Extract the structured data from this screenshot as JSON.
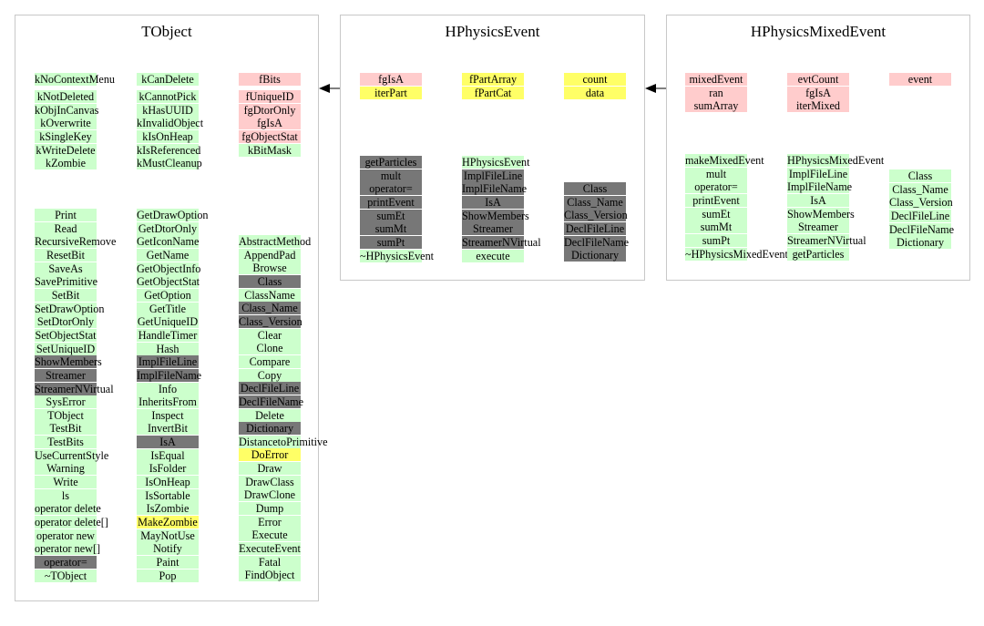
{
  "colors": {
    "green": "#ccffcc",
    "pink": "#ffcccc",
    "yellow": "#ffff66",
    "gray": "#777777",
    "border": "#c8c8c8"
  },
  "classes": [
    {
      "id": "tobject",
      "title": "TObject",
      "columns": [
        {
          "groups": [
            [
              {
                "text": "kNoContextMenu",
                "color": "green"
              }
            ],
            [
              {
                "text": "kNotDeleted",
                "color": "green"
              },
              {
                "text": "kObjInCanvas",
                "color": "green"
              },
              {
                "text": "kOverwrite",
                "color": "green"
              },
              {
                "text": "kSingleKey",
                "color": "green"
              },
              {
                "text": "kWriteDelete",
                "color": "green"
              },
              {
                "text": "kZombie",
                "color": "green"
              }
            ],
            [
              {
                "text": "Print",
                "color": "green"
              },
              {
                "text": "Read",
                "color": "green"
              },
              {
                "text": "RecursiveRemove",
                "color": "green"
              },
              {
                "text": "ResetBit",
                "color": "green"
              },
              {
                "text": "SaveAs",
                "color": "green"
              },
              {
                "text": "SavePrimitive",
                "color": "green"
              },
              {
                "text": "SetBit",
                "color": "green"
              },
              {
                "text": "SetDrawOption",
                "color": "green"
              },
              {
                "text": "SetDtorOnly",
                "color": "green"
              },
              {
                "text": "SetObjectStat",
                "color": "green"
              },
              {
                "text": "SetUniqueID",
                "color": "green"
              },
              {
                "text": "ShowMembers",
                "color": "gray"
              },
              {
                "text": "Streamer",
                "color": "gray"
              },
              {
                "text": "StreamerNVirtual",
                "color": "gray"
              },
              {
                "text": "SysError",
                "color": "green"
              },
              {
                "text": "TObject",
                "color": "green"
              },
              {
                "text": "TestBit",
                "color": "green"
              },
              {
                "text": "TestBits",
                "color": "green"
              },
              {
                "text": "UseCurrentStyle",
                "color": "green"
              },
              {
                "text": "Warning",
                "color": "green"
              },
              {
                "text": "Write",
                "color": "green"
              },
              {
                "text": "ls",
                "color": "green"
              },
              {
                "text": "operator delete",
                "color": "green"
              },
              {
                "text": "operator delete[]",
                "color": "green"
              },
              {
                "text": "operator new",
                "color": "green"
              },
              {
                "text": "operator new[]",
                "color": "green"
              },
              {
                "text": "operator=",
                "color": "gray"
              },
              {
                "text": "~TObject",
                "color": "green"
              }
            ]
          ]
        },
        {
          "groups": [
            [
              {
                "text": "kCanDelete",
                "color": "green"
              }
            ],
            [
              {
                "text": "kCannotPick",
                "color": "green"
              },
              {
                "text": "kHasUUID",
                "color": "green"
              },
              {
                "text": "kInvalidObject",
                "color": "green"
              },
              {
                "text": "kIsOnHeap",
                "color": "green"
              },
              {
                "text": "kIsReferenced",
                "color": "green"
              },
              {
                "text": "kMustCleanup",
                "color": "green"
              }
            ],
            [
              {
                "text": "GetDrawOption",
                "color": "green"
              },
              {
                "text": "GetDtorOnly",
                "color": "green"
              },
              {
                "text": "GetIconName",
                "color": "green"
              },
              {
                "text": "GetName",
                "color": "green"
              },
              {
                "text": "GetObjectInfo",
                "color": "green"
              },
              {
                "text": "GetObjectStat",
                "color": "green"
              },
              {
                "text": "GetOption",
                "color": "green"
              },
              {
                "text": "GetTitle",
                "color": "green"
              },
              {
                "text": "GetUniqueID",
                "color": "green"
              },
              {
                "text": "HandleTimer",
                "color": "green"
              },
              {
                "text": "Hash",
                "color": "green"
              },
              {
                "text": "ImplFileLine",
                "color": "gray"
              },
              {
                "text": "ImplFileName",
                "color": "gray"
              },
              {
                "text": "Info",
                "color": "green"
              },
              {
                "text": "InheritsFrom",
                "color": "green"
              },
              {
                "text": "Inspect",
                "color": "green"
              },
              {
                "text": "InvertBit",
                "color": "green"
              },
              {
                "text": "IsA",
                "color": "gray"
              },
              {
                "text": "IsEqual",
                "color": "green"
              },
              {
                "text": "IsFolder",
                "color": "green"
              },
              {
                "text": "IsOnHeap",
                "color": "green"
              },
              {
                "text": "IsSortable",
                "color": "green"
              },
              {
                "text": "IsZombie",
                "color": "green"
              },
              {
                "text": "MakeZombie",
                "color": "yellow"
              },
              {
                "text": "MayNotUse",
                "color": "green"
              },
              {
                "text": "Notify",
                "color": "green"
              },
              {
                "text": "Paint",
                "color": "green"
              },
              {
                "text": "Pop",
                "color": "green"
              }
            ]
          ]
        },
        {
          "groups": [
            [
              {
                "text": "fBits",
                "color": "pink"
              }
            ],
            [
              {
                "text": "fUniqueID",
                "color": "pink"
              },
              {
                "text": "fgDtorOnly",
                "color": "pink"
              },
              {
                "text": "fgIsA",
                "color": "pink"
              },
              {
                "text": "fgObjectStat",
                "color": "pink"
              },
              {
                "text": "kBitMask",
                "color": "green"
              }
            ],
            [
              {
                "text": "AbstractMethod",
                "color": "green"
              },
              {
                "text": "AppendPad",
                "color": "green"
              },
              {
                "text": "Browse",
                "color": "green"
              },
              {
                "text": "Class",
                "color": "gray"
              },
              {
                "text": "ClassName",
                "color": "green"
              },
              {
                "text": "Class_Name",
                "color": "gray"
              },
              {
                "text": "Class_Version",
                "color": "gray"
              },
              {
                "text": "Clear",
                "color": "green"
              },
              {
                "text": "Clone",
                "color": "green"
              },
              {
                "text": "Compare",
                "color": "green"
              },
              {
                "text": "Copy",
                "color": "green"
              },
              {
                "text": "DeclFileLine",
                "color": "gray"
              },
              {
                "text": "DeclFileName",
                "color": "gray"
              },
              {
                "text": "Delete",
                "color": "green"
              },
              {
                "text": "Dictionary",
                "color": "gray"
              },
              {
                "text": "DistancetoPrimitive",
                "color": "green"
              },
              {
                "text": "DoError",
                "color": "yellow"
              },
              {
                "text": "Draw",
                "color": "green"
              },
              {
                "text": "DrawClass",
                "color": "green"
              },
              {
                "text": "DrawClone",
                "color": "green"
              },
              {
                "text": "Dump",
                "color": "green"
              },
              {
                "text": "Error",
                "color": "green"
              },
              {
                "text": "Execute",
                "color": "green"
              },
              {
                "text": "ExecuteEvent",
                "color": "green"
              },
              {
                "text": "Fatal",
                "color": "green"
              },
              {
                "text": "FindObject",
                "color": "green"
              }
            ]
          ]
        }
      ]
    },
    {
      "id": "hphysicsevent",
      "title": "HPhysicsEvent",
      "columns": [
        {
          "groups": [
            [
              {
                "text": "fgIsA",
                "color": "pink"
              },
              {
                "text": "iterPart",
                "color": "yellow"
              }
            ],
            [
              {
                "text": "getParticles",
                "color": "gray"
              },
              {
                "text": "mult",
                "color": "gray"
              },
              {
                "text": "operator=",
                "color": "gray"
              },
              {
                "text": "printEvent",
                "color": "gray"
              },
              {
                "text": "sumEt",
                "color": "gray"
              },
              {
                "text": "sumMt",
                "color": "gray"
              },
              {
                "text": "sumPt",
                "color": "gray"
              },
              {
                "text": "~HPhysicsEvent",
                "color": "green"
              }
            ]
          ]
        },
        {
          "groups": [
            [
              {
                "text": "fPartArray",
                "color": "yellow"
              },
              {
                "text": "fPartCat",
                "color": "yellow"
              }
            ],
            [
              {
                "text": "HPhysicsEvent",
                "color": "green"
              },
              {
                "text": "ImplFileLine",
                "color": "gray"
              },
              {
                "text": "ImplFileName",
                "color": "gray"
              },
              {
                "text": "IsA",
                "color": "gray"
              },
              {
                "text": "ShowMembers",
                "color": "gray"
              },
              {
                "text": "Streamer",
                "color": "gray"
              },
              {
                "text": "StreamerNVirtual",
                "color": "gray"
              },
              {
                "text": "execute",
                "color": "green"
              }
            ]
          ]
        },
        {
          "groups": [
            [
              {
                "text": "count",
                "color": "yellow"
              },
              {
                "text": "data",
                "color": "yellow"
              }
            ],
            [
              {
                "text": "Class",
                "color": "gray"
              },
              {
                "text": "Class_Name",
                "color": "gray"
              },
              {
                "text": "Class_Version",
                "color": "gray"
              },
              {
                "text": "DeclFileLine",
                "color": "gray"
              },
              {
                "text": "DeclFileName",
                "color": "gray"
              },
              {
                "text": "Dictionary",
                "color": "gray"
              }
            ]
          ]
        }
      ]
    },
    {
      "id": "hphysicsmixedevent",
      "title": "HPhysicsMixedEvent",
      "columns": [
        {
          "groups": [
            [
              {
                "text": "mixedEvent",
                "color": "pink"
              },
              {
                "text": "ran",
                "color": "pink"
              },
              {
                "text": "sumArray",
                "color": "pink"
              }
            ],
            [
              {
                "text": "makeMixedEvent",
                "color": "green"
              },
              {
                "text": "mult",
                "color": "green"
              },
              {
                "text": "operator=",
                "color": "green"
              },
              {
                "text": "printEvent",
                "color": "green"
              },
              {
                "text": "sumEt",
                "color": "green"
              },
              {
                "text": "sumMt",
                "color": "green"
              },
              {
                "text": "sumPt",
                "color": "green"
              },
              {
                "text": "~HPhysicsMixedEvent",
                "color": "green"
              }
            ]
          ]
        },
        {
          "groups": [
            [
              {
                "text": "evtCount",
                "color": "pink"
              },
              {
                "text": "fgIsA",
                "color": "pink"
              },
              {
                "text": "iterMixed",
                "color": "pink"
              }
            ],
            [
              {
                "text": "HPhysicsMixedEvent",
                "color": "green"
              },
              {
                "text": "ImplFileLine",
                "color": "green"
              },
              {
                "text": "ImplFileName",
                "color": "green"
              },
              {
                "text": "IsA",
                "color": "green"
              },
              {
                "text": "ShowMembers",
                "color": "green"
              },
              {
                "text": "Streamer",
                "color": "green"
              },
              {
                "text": "StreamerNVirtual",
                "color": "green"
              },
              {
                "text": "getParticles",
                "color": "green"
              }
            ]
          ]
        },
        {
          "groups": [
            [
              {
                "text": "event",
                "color": "pink"
              }
            ],
            [
              {
                "text": "Class",
                "color": "green"
              },
              {
                "text": "Class_Name",
                "color": "green"
              },
              {
                "text": "Class_Version",
                "color": "green"
              },
              {
                "text": "DeclFileLine",
                "color": "green"
              },
              {
                "text": "DeclFileName",
                "color": "green"
              },
              {
                "text": "Dictionary",
                "color": "green"
              }
            ]
          ]
        }
      ]
    }
  ],
  "inheritance": [
    {
      "from": "hphysicsmixedevent",
      "to": "hphysicsevent"
    },
    {
      "from": "hphysicsevent",
      "to": "tobject"
    }
  ]
}
